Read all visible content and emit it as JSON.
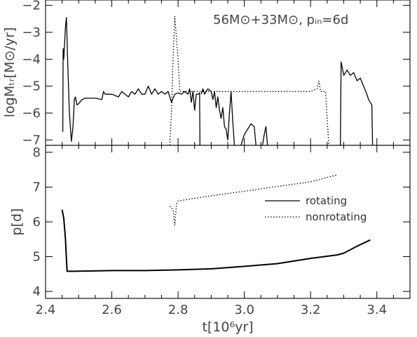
{
  "chart_data": [
    {
      "panel": "top",
      "type": "line",
      "annotation": "56M⊙+33M⊙, pᵢₙ=6d",
      "ylabel": "logMₜᵣ[M⊙/yr]",
      "xlim": [
        2.4,
        3.5
      ],
      "ylim": [
        -7.2,
        -1.8
      ],
      "yticks": [
        -7,
        -6,
        -5,
        -4,
        -3,
        -2
      ],
      "ytick_labels": [
        "−7",
        "−6",
        "−5",
        "−4",
        "−3",
        "−2"
      ],
      "series": [
        {
          "style": "solid",
          "segments": [
            [
              [
                2.452,
                -6.7
              ],
              [
                2.453,
                -3.6
              ],
              [
                2.455,
                -4.0
              ],
              [
                2.46,
                -2.8
              ],
              [
                2.463,
                -2.45
              ],
              [
                2.467,
                -4.2
              ],
              [
                2.472,
                -6.0
              ],
              [
                2.478,
                -7.05
              ],
              [
                2.483,
                -6.5
              ],
              [
                2.487,
                -5.5
              ],
              [
                2.49,
                -5.4
              ],
              [
                2.495,
                -5.7
              ],
              [
                2.5,
                -5.65
              ],
              [
                2.51,
                -5.5
              ],
              [
                2.52,
                -5.45
              ],
              [
                2.55,
                -5.45
              ],
              [
                2.57,
                -5.5
              ],
              [
                2.575,
                -5.2
              ],
              [
                2.58,
                -5.3
              ],
              [
                2.6,
                -5.3
              ],
              [
                2.62,
                -5.4
              ],
              [
                2.63,
                -5.2
              ],
              [
                2.64,
                -5.3
              ],
              [
                2.65,
                -5.4
              ],
              [
                2.66,
                -5.2
              ],
              [
                2.67,
                -5.3
              ],
              [
                2.68,
                -5.1
              ],
              [
                2.69,
                -5.3
              ],
              [
                2.7,
                -5.3
              ],
              [
                2.71,
                -5.0
              ],
              [
                2.72,
                -5.3
              ],
              [
                2.73,
                -5.1
              ],
              [
                2.74,
                -5.3
              ],
              [
                2.75,
                -5.2
              ],
              [
                2.76,
                -5.3
              ],
              [
                2.77,
                -5.2
              ],
              [
                2.78,
                -5.6
              ],
              [
                2.79,
                -5.3
              ],
              [
                2.8,
                -5.25
              ],
              [
                2.81,
                -5.3
              ],
              [
                2.82,
                -5.2
              ],
              [
                2.83,
                -5.3
              ],
              [
                2.835,
                -5.1
              ],
              [
                2.84,
                -5.6
              ],
              [
                2.845,
                -5.2
              ],
              [
                2.85,
                -5.9
              ],
              [
                2.855,
                -5.3
              ],
              [
                2.86,
                -5.3
              ],
              [
                2.865,
                -5.25
              ],
              [
                2.866,
                -7.2
              ]
            ],
            [
              [
                2.87,
                -5.3
              ],
              [
                2.875,
                -5.1
              ],
              [
                2.88,
                -5.3
              ],
              [
                2.89,
                -5.1
              ],
              [
                2.9,
                -5.2
              ],
              [
                2.905,
                -5.5
              ],
              [
                2.91,
                -5.2
              ],
              [
                2.915,
                -5.8
              ],
              [
                2.92,
                -5.4
              ],
              [
                2.925,
                -5.9
              ],
              [
                2.93,
                -6.2
              ],
              [
                2.935,
                -5.8
              ],
              [
                2.94,
                -6.5
              ],
              [
                2.945,
                -6.6
              ],
              [
                2.95,
                -7.0
              ],
              [
                2.955,
                -6.0
              ],
              [
                2.96,
                -5.2
              ],
              [
                2.965,
                -6.3
              ],
              [
                2.97,
                -7.2
              ]
            ],
            [
              [
                2.99,
                -7.2
              ],
              [
                3.0,
                -6.8
              ],
              [
                3.01,
                -6.6
              ],
              [
                3.02,
                -6.4
              ],
              [
                3.03,
                -6.5
              ],
              [
                3.035,
                -7.2
              ]
            ],
            [
              [
                3.055,
                -7.2
              ],
              [
                3.06,
                -6.8
              ],
              [
                3.065,
                -6.5
              ],
              [
                3.07,
                -7.2
              ]
            ],
            [
              [
                3.29,
                -7.2
              ],
              [
                3.292,
                -4.1
              ],
              [
                3.3,
                -4.6
              ],
              [
                3.31,
                -4.4
              ],
              [
                3.32,
                -4.6
              ],
              [
                3.33,
                -4.5
              ],
              [
                3.34,
                -4.8
              ],
              [
                3.35,
                -4.7
              ],
              [
                3.36,
                -5.0
              ],
              [
                3.37,
                -5.3
              ],
              [
                3.375,
                -5.5
              ],
              [
                3.38,
                -5.6
              ],
              [
                3.385,
                -5.7
              ],
              [
                3.387,
                -7.2
              ]
            ]
          ]
        },
        {
          "style": "dotted",
          "segments": [
            [
              [
                2.775,
                -7.2
              ],
              [
                2.78,
                -6.0
              ],
              [
                2.785,
                -4.0
              ],
              [
                2.79,
                -2.4
              ],
              [
                2.8,
                -4.0
              ],
              [
                2.805,
                -5.2
              ],
              [
                2.82,
                -5.2
              ],
              [
                2.9,
                -5.2
              ],
              [
                3.0,
                -5.2
              ],
              [
                3.1,
                -5.2
              ],
              [
                3.2,
                -5.2
              ],
              [
                3.22,
                -5.1
              ],
              [
                3.225,
                -4.8
              ],
              [
                3.23,
                -5.2
              ],
              [
                3.245,
                -5.2
              ],
              [
                3.25,
                -6.2
              ],
              [
                3.255,
                -7.2
              ]
            ]
          ]
        }
      ]
    },
    {
      "panel": "bottom",
      "type": "line",
      "xlabel": "t[10⁶yr]",
      "ylabel": "p[d]",
      "xlim": [
        2.4,
        3.5
      ],
      "ylim": [
        3.8,
        8.2
      ],
      "xticks": [
        2.4,
        2.6,
        2.8,
        3.0,
        3.2,
        3.4
      ],
      "xtick_labels": [
        "2.4",
        "2.6",
        "2.8",
        "3.0",
        "3.2",
        "3.4"
      ],
      "yticks": [
        4,
        5,
        6,
        7,
        8
      ],
      "ytick_labels": [
        "4",
        "5",
        "6",
        "7",
        "8"
      ],
      "legend": {
        "position": "right-middle",
        "entries": [
          {
            "label": "rotating",
            "style": "solid"
          },
          {
            "label": "nonrotating",
            "style": "dotted"
          }
        ]
      },
      "series": [
        {
          "style": "solid",
          "segments": [
            [
              [
                2.45,
                6.35
              ],
              [
                2.455,
                6.1
              ],
              [
                2.46,
                5.5
              ],
              [
                2.465,
                4.58
              ],
              [
                2.48,
                4.58
              ],
              [
                2.6,
                4.6
              ],
              [
                2.7,
                4.6
              ],
              [
                2.8,
                4.62
              ],
              [
                2.9,
                4.65
              ],
              [
                3.0,
                4.72
              ],
              [
                3.1,
                4.8
              ],
              [
                3.2,
                4.95
              ],
              [
                3.28,
                5.05
              ],
              [
                3.3,
                5.1
              ],
              [
                3.34,
                5.3
              ],
              [
                3.38,
                5.48
              ]
            ]
          ]
        },
        {
          "style": "dotted",
          "segments": [
            [
              [
                2.775,
                6.45
              ],
              [
                2.785,
                6.35
              ],
              [
                2.79,
                5.9
              ],
              [
                2.795,
                6.5
              ],
              [
                2.8,
                6.6
              ],
              [
                2.9,
                6.75
              ],
              [
                3.0,
                6.88
              ],
              [
                3.1,
                7.02
              ],
              [
                3.2,
                7.15
              ],
              [
                3.28,
                7.35
              ]
            ]
          ]
        }
      ]
    }
  ]
}
